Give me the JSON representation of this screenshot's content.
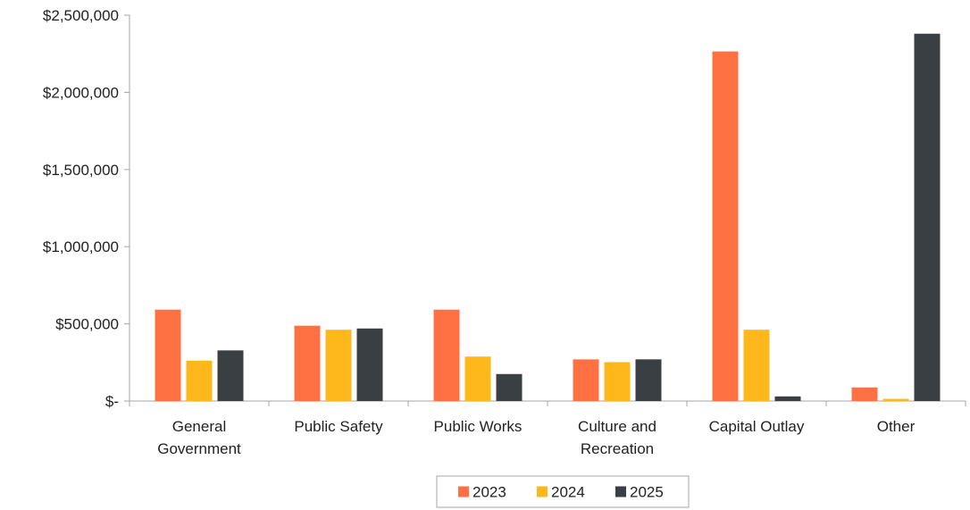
{
  "chart_data": {
    "type": "bar",
    "categories": [
      [
        "General",
        "Government"
      ],
      [
        "Public Safety"
      ],
      [
        "Public Works"
      ],
      [
        "Culture and",
        "Recreation"
      ],
      [
        "Capital Outlay"
      ],
      [
        "Other"
      ]
    ],
    "series": [
      {
        "name": "2023",
        "color": "#ff7043",
        "values": [
          592000,
          488000,
          592000,
          270000,
          2265000,
          88000
        ]
      },
      {
        "name": "2024",
        "color": "#ffb81c",
        "values": [
          262000,
          462000,
          288000,
          252000,
          462000,
          14000
        ]
      },
      {
        "name": "2025",
        "color": "#3a3f44",
        "values": [
          328000,
          470000,
          175000,
          270000,
          30000,
          2380000
        ]
      }
    ],
    "ylim": [
      0,
      2500000
    ],
    "yticks": [
      {
        "value": 0,
        "label": "$-"
      },
      {
        "value": 500000,
        "label": "$500,000"
      },
      {
        "value": 1000000,
        "label": "$1,000,000"
      },
      {
        "value": 1500000,
        "label": "$1,500,000"
      },
      {
        "value": 2000000,
        "label": "$2,000,000"
      },
      {
        "value": 2500000,
        "label": "$2,500,000"
      }
    ],
    "grid": false,
    "legend_position": "bottom-center"
  }
}
